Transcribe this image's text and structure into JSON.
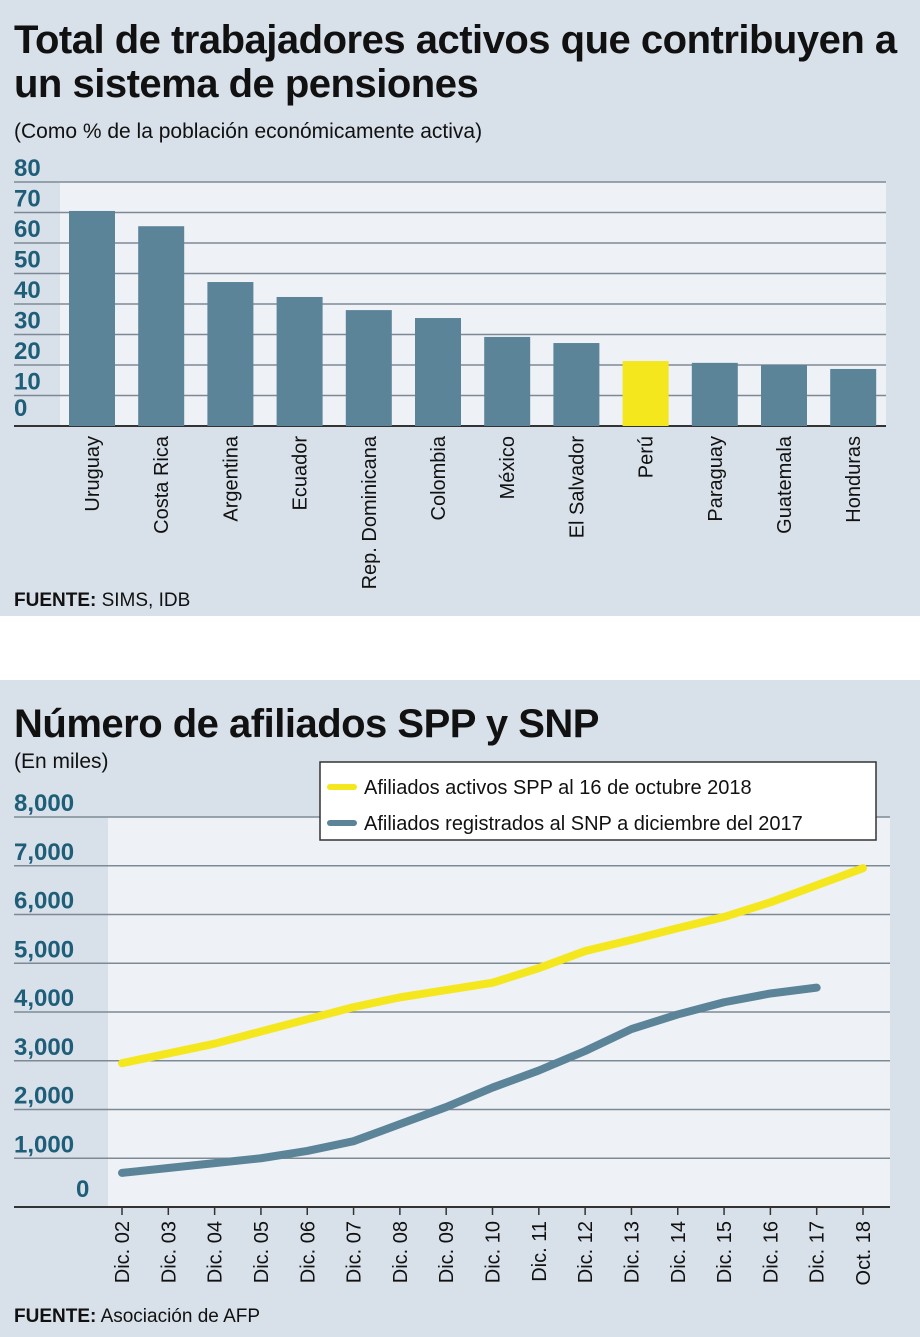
{
  "chart_data": [
    {
      "type": "bar",
      "title": "Total de trabajadores activos que contribuyen a un sistema de pensiones",
      "subtitle": "(Como % de la población económicamente activa)",
      "categories": [
        "Uruguay",
        "Costa Rica",
        "Argentina",
        "Ecuador",
        "Rep. Dominicana",
        "Colombia",
        "México",
        "El Salvador",
        "Perú",
        "Paraguay",
        "Guatemala",
        "Honduras"
      ],
      "values": [
        70.5,
        65.5,
        47.2,
        42.3,
        38,
        35.4,
        29.2,
        27.2,
        21.3,
        20.7,
        20,
        18.7
      ],
      "highlight": "Perú",
      "colors": {
        "bar": "#5b8499",
        "highlight": "#f5e71e",
        "plot_bg": "#eef1f6",
        "background": "#d8e0e9"
      },
      "yticks": [
        "0",
        "10",
        "20",
        "30",
        "40",
        "50",
        "60",
        "70",
        "80"
      ],
      "ylim": [
        0,
        80
      ],
      "grid": true,
      "source_label": "FUENTE:",
      "source": "SIMS, IDB"
    },
    {
      "type": "line",
      "title": "Número de afiliados SPP y SNP",
      "subtitle": "(En miles)",
      "categories": [
        "Dic. 02",
        "Dic. 03",
        "Dic. 04",
        "Dic. 05",
        "Dic. 06",
        "Dic. 07",
        "Dic. 08",
        "Dic. 09",
        "Dic. 10",
        "Dic. 11",
        "Dic. 12",
        "Dic. 13",
        "Dic. 14",
        "Dic. 15",
        "Dic. 16",
        "Dic. 17",
        "Oct. 18"
      ],
      "series": [
        {
          "name": "Afiliados activos SPP al 16 de octubre 2018",
          "color": "#f5e71e",
          "values": [
            2950,
            3150,
            3350,
            3600,
            3850,
            4100,
            4300,
            4450,
            4600,
            4900,
            5250,
            5480,
            5720,
            5950,
            6250,
            6600,
            6950
          ]
        },
        {
          "name": "Afiliados registrados al SNP a diciembre del 2017",
          "color": "#5b8499",
          "values": [
            700,
            800,
            900,
            1000,
            1150,
            1350,
            1700,
            2050,
            2450,
            2800,
            3200,
            3650,
            3950,
            4200,
            4380,
            4500,
            null
          ]
        }
      ],
      "yticks": [
        "0",
        "1,000",
        "2,000",
        "3,000",
        "4,000",
        "5,000",
        "6,000",
        "7,000",
        "8,000"
      ],
      "ylim": [
        0,
        8000
      ],
      "grid": true,
      "legend": "top-right",
      "source_label": "FUENTE:",
      "source": "Asociación de AFP"
    }
  ]
}
